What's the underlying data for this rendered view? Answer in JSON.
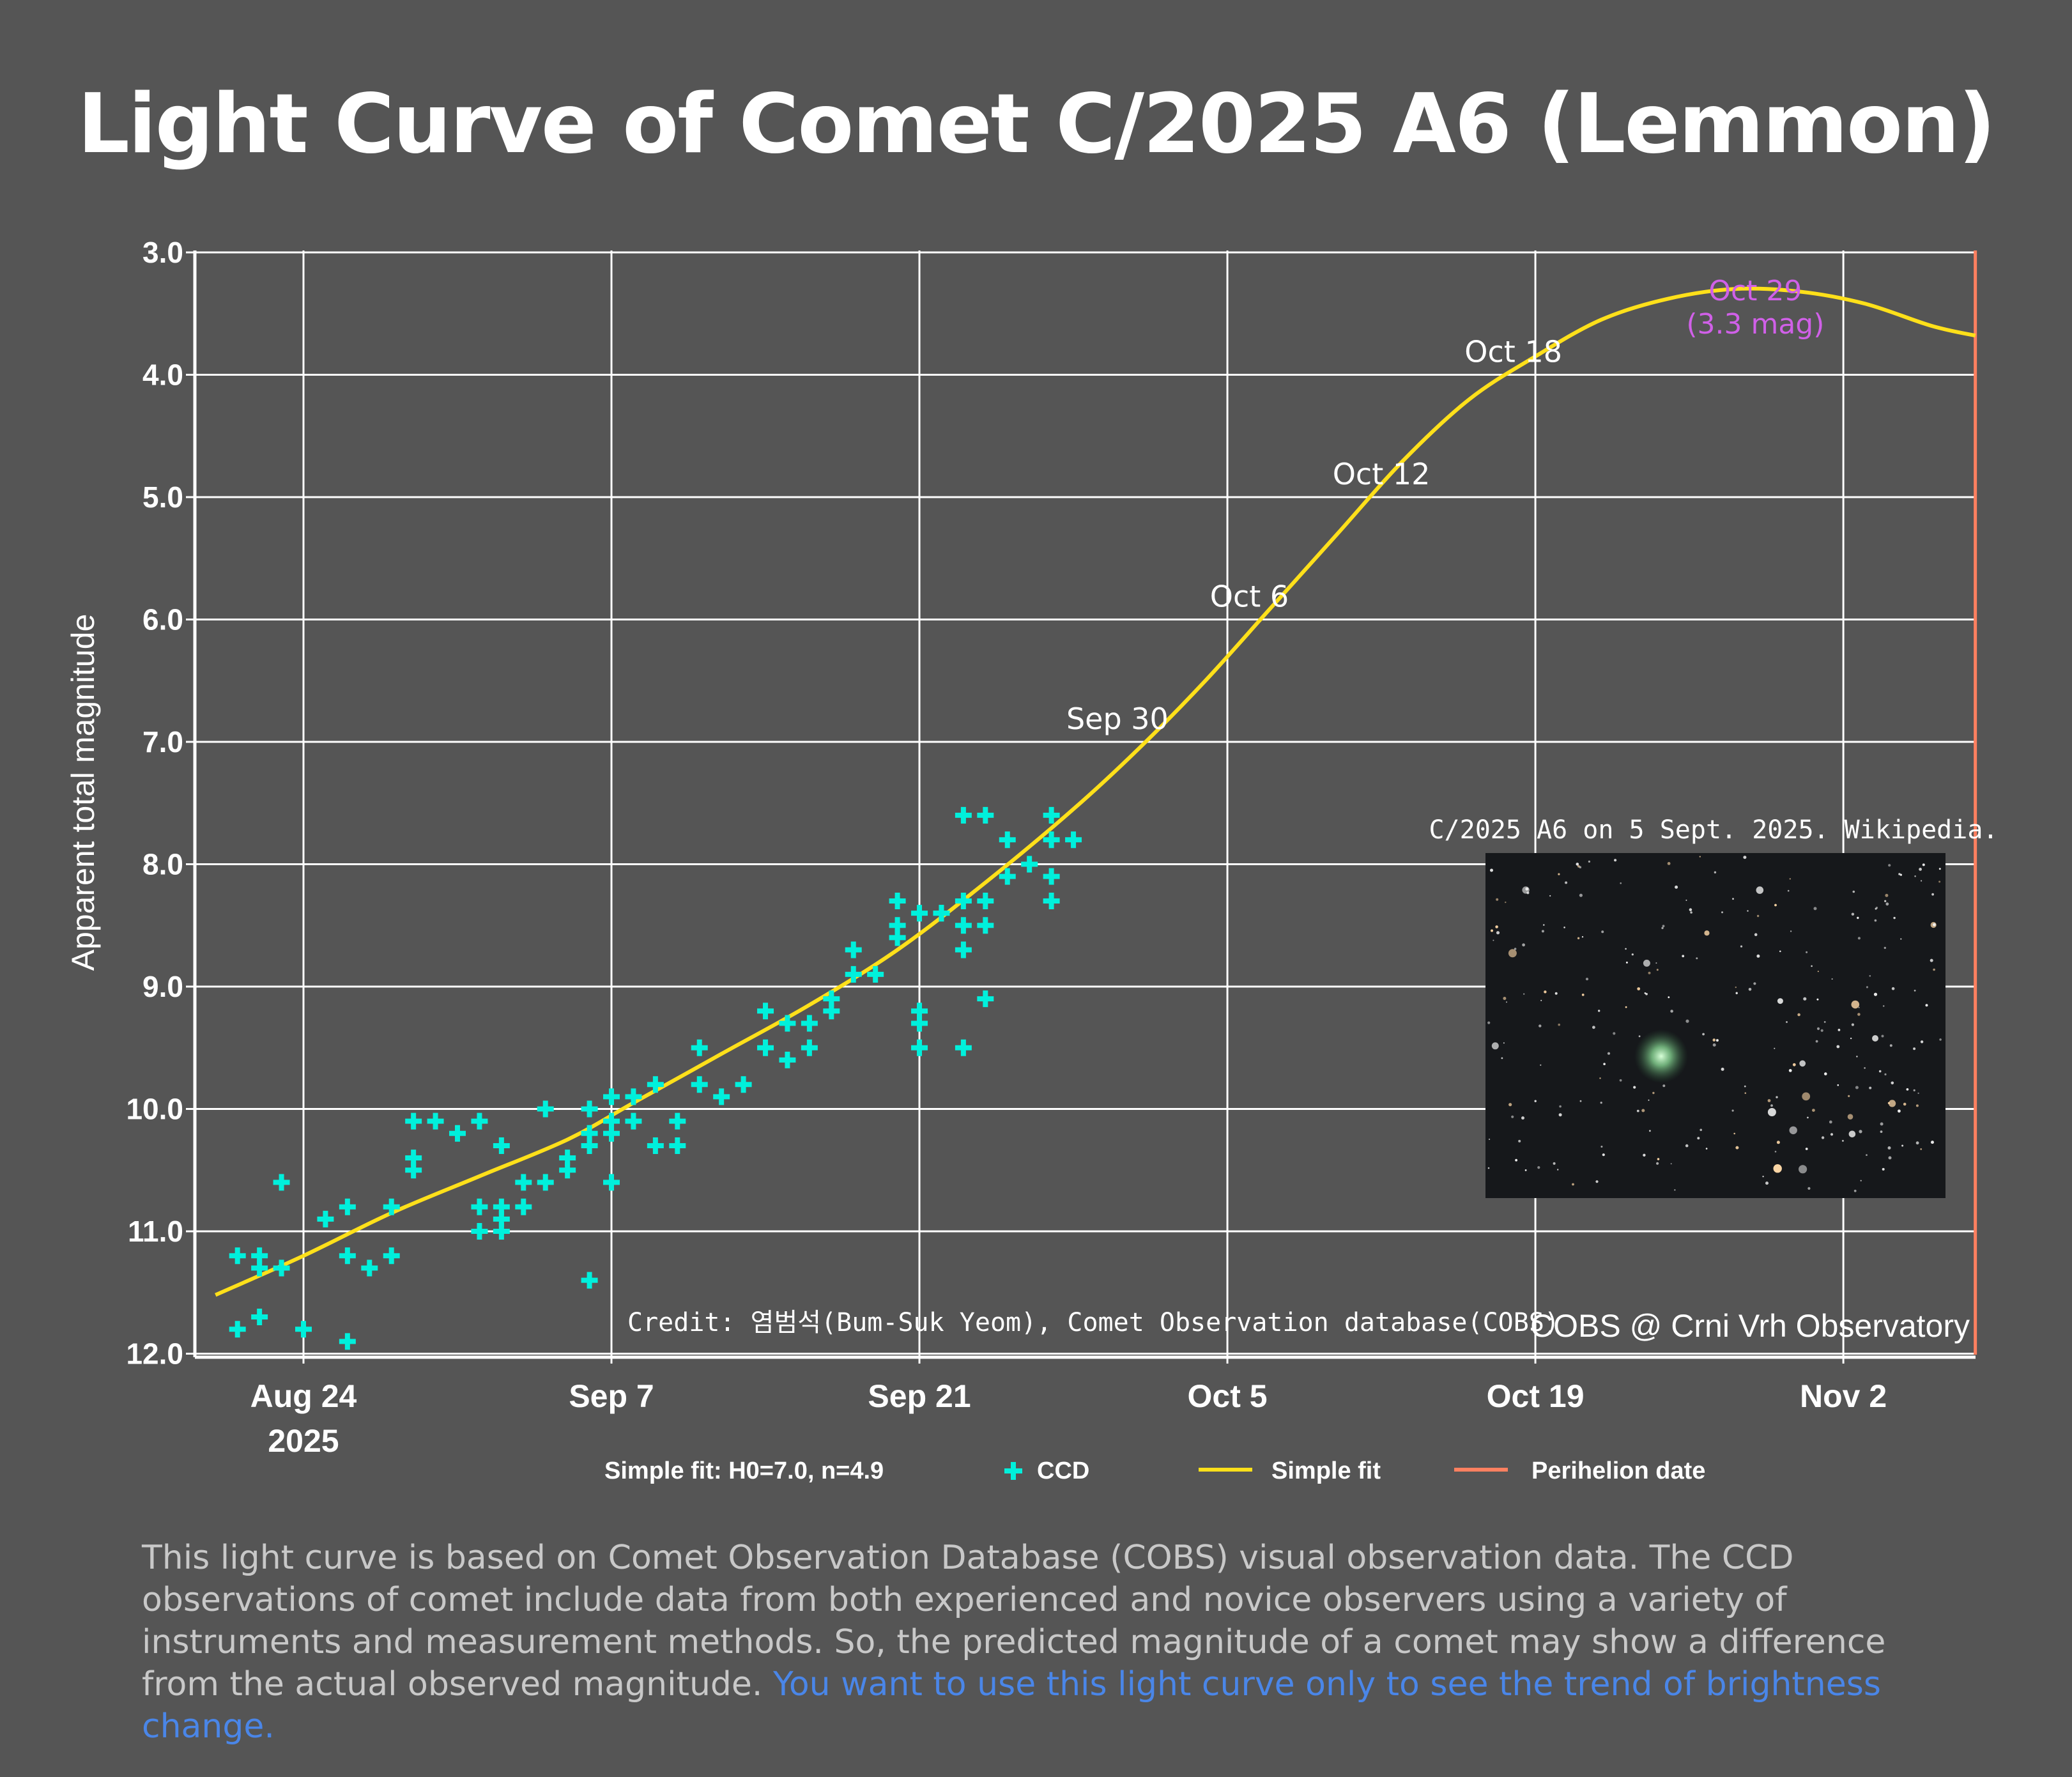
{
  "title": "Light Curve of Comet C/2025 A6 (Lemmon)",
  "chart_data": {
    "type": "scatter",
    "ylabel": "Apparent total magnitude",
    "y_reversed": true,
    "ylim": [
      12.0,
      3.0
    ],
    "y_ticks": [
      "3.0",
      "4.0",
      "5.0",
      "6.0",
      "7.0",
      "8.0",
      "9.0",
      "10.0",
      "11.0",
      "12.0"
    ],
    "x_type": "date",
    "xlim": [
      "2025-08-19",
      "2025-11-08"
    ],
    "x_ticks": [
      {
        "date": "2025-08-24",
        "label": "Aug 24",
        "sublabel": "2025"
      },
      {
        "date": "2025-09-07",
        "label": "Sep 7"
      },
      {
        "date": "2025-09-21",
        "label": "Sep 21"
      },
      {
        "date": "2025-10-05",
        "label": "Oct 5"
      },
      {
        "date": "2025-10-19",
        "label": "Oct 19"
      },
      {
        "date": "2025-11-02",
        "label": "Nov 2"
      }
    ],
    "grid": true,
    "series": [
      {
        "name": "CCD",
        "marker": "plus",
        "color": "#00f0dc",
        "points": [
          [
            "2025-08-21",
            11.8
          ],
          [
            "2025-08-21",
            11.2
          ],
          [
            "2025-08-22",
            11.2
          ],
          [
            "2025-08-22",
            11.3
          ],
          [
            "2025-08-22",
            11.7
          ],
          [
            "2025-08-23",
            10.6
          ],
          [
            "2025-08-23",
            11.3
          ],
          [
            "2025-08-24",
            11.8
          ],
          [
            "2025-08-25",
            10.9
          ],
          [
            "2025-08-26",
            10.8
          ],
          [
            "2025-08-26",
            11.2
          ],
          [
            "2025-08-26",
            11.9
          ],
          [
            "2025-08-27",
            11.3
          ],
          [
            "2025-08-28",
            10.8
          ],
          [
            "2025-08-28",
            11.2
          ],
          [
            "2025-08-29",
            10.4
          ],
          [
            "2025-08-29",
            10.5
          ],
          [
            "2025-08-29",
            10.1
          ],
          [
            "2025-08-30",
            10.1
          ],
          [
            "2025-08-31",
            10.2
          ],
          [
            "2025-09-01",
            10.8
          ],
          [
            "2025-09-01",
            11.0
          ],
          [
            "2025-09-01",
            10.1
          ],
          [
            "2025-09-02",
            10.8
          ],
          [
            "2025-09-02",
            10.9
          ],
          [
            "2025-09-02",
            10.3
          ],
          [
            "2025-09-02",
            11.0
          ],
          [
            "2025-09-03",
            10.8
          ],
          [
            "2025-09-03",
            10.6
          ],
          [
            "2025-09-04",
            10.0
          ],
          [
            "2025-09-04",
            10.6
          ],
          [
            "2025-09-05",
            10.5
          ],
          [
            "2025-09-05",
            10.4
          ],
          [
            "2025-09-06",
            10.2
          ],
          [
            "2025-09-06",
            10.0
          ],
          [
            "2025-09-06",
            11.4
          ],
          [
            "2025-09-06",
            10.3
          ],
          [
            "2025-09-07",
            10.2
          ],
          [
            "2025-09-07",
            9.9
          ],
          [
            "2025-09-07",
            10.6
          ],
          [
            "2025-09-07",
            10.1
          ],
          [
            "2025-09-08",
            9.9
          ],
          [
            "2025-09-08",
            10.1
          ],
          [
            "2025-09-09",
            10.3
          ],
          [
            "2025-09-09",
            9.8
          ],
          [
            "2025-09-10",
            10.1
          ],
          [
            "2025-09-10",
            10.3
          ],
          [
            "2025-09-11",
            9.5
          ],
          [
            "2025-09-11",
            9.8
          ],
          [
            "2025-09-12",
            9.9
          ],
          [
            "2025-09-13",
            9.8
          ],
          [
            "2025-09-14",
            9.5
          ],
          [
            "2025-09-14",
            9.2
          ],
          [
            "2025-09-15",
            9.6
          ],
          [
            "2025-09-15",
            9.3
          ],
          [
            "2025-09-16",
            9.3
          ],
          [
            "2025-09-16",
            9.5
          ],
          [
            "2025-09-17",
            9.2
          ],
          [
            "2025-09-17",
            9.1
          ],
          [
            "2025-09-18",
            8.9
          ],
          [
            "2025-09-18",
            8.7
          ],
          [
            "2025-09-19",
            8.9
          ],
          [
            "2025-09-20",
            8.3
          ],
          [
            "2025-09-20",
            8.5
          ],
          [
            "2025-09-20",
            8.6
          ],
          [
            "2025-09-21",
            8.4
          ],
          [
            "2025-09-21",
            9.2
          ],
          [
            "2025-09-21",
            9.3
          ],
          [
            "2025-09-21",
            9.5
          ],
          [
            "2025-09-22",
            8.4
          ],
          [
            "2025-09-22",
            8.4
          ],
          [
            "2025-09-23",
            7.6
          ],
          [
            "2025-09-23",
            8.3
          ],
          [
            "2025-09-23",
            8.5
          ],
          [
            "2025-09-23",
            8.7
          ],
          [
            "2025-09-23",
            9.5
          ],
          [
            "2025-09-24",
            8.5
          ],
          [
            "2025-09-24",
            9.1
          ],
          [
            "2025-09-24",
            8.3
          ],
          [
            "2025-09-24",
            7.6
          ],
          [
            "2025-09-25",
            8.1
          ],
          [
            "2025-09-25",
            7.8
          ],
          [
            "2025-09-26",
            8.0
          ],
          [
            "2025-09-27",
            7.6
          ],
          [
            "2025-09-27",
            7.8
          ],
          [
            "2025-09-27",
            8.1
          ],
          [
            "2025-09-27",
            8.3
          ],
          [
            "2025-09-28",
            7.8
          ]
        ]
      },
      {
        "name": "Simple fit",
        "color": "#ffe01a",
        "points": [
          [
            "2025-08-20",
            11.52
          ],
          [
            "2025-08-24",
            11.2
          ],
          [
            "2025-08-28",
            10.85
          ],
          [
            "2025-09-01",
            10.55
          ],
          [
            "2025-09-05",
            10.25
          ],
          [
            "2025-09-08",
            9.95
          ],
          [
            "2025-09-12",
            9.55
          ],
          [
            "2025-09-16",
            9.15
          ],
          [
            "2025-09-20",
            8.7
          ],
          [
            "2025-09-24",
            8.15
          ],
          [
            "2025-09-28",
            7.55
          ],
          [
            "2025-10-01",
            7.05
          ],
          [
            "2025-10-04",
            6.5
          ],
          [
            "2025-10-07",
            5.9
          ],
          [
            "2025-10-10",
            5.3
          ],
          [
            "2025-10-13",
            4.7
          ],
          [
            "2025-10-16",
            4.2
          ],
          [
            "2025-10-19",
            3.85
          ],
          [
            "2025-10-22",
            3.55
          ],
          [
            "2025-10-25",
            3.38
          ],
          [
            "2025-10-28",
            3.3
          ],
          [
            "2025-10-31",
            3.32
          ],
          [
            "2025-11-03",
            3.42
          ],
          [
            "2025-11-06",
            3.6
          ],
          [
            "2025-11-08",
            3.68
          ]
        ]
      },
      {
        "name": "Perihelion date",
        "color": "#ff8060",
        "date": "2025-11-08"
      }
    ],
    "annotations": [
      {
        "text": "Sep 30",
        "date": "2025-09-30",
        "mag": 7.0
      },
      {
        "text": "Oct 6",
        "date": "2025-10-06",
        "mag": 6.0
      },
      {
        "text": "Oct 12",
        "date": "2025-10-12",
        "mag": 5.0
      },
      {
        "text": "Oct 18",
        "date": "2025-10-18",
        "mag": 4.0
      }
    ],
    "peak_annotation": {
      "date": "2025-10-29",
      "mag": 3.6,
      "line1": "Oct 29",
      "line2": "(3.3 mag)"
    },
    "legend": {
      "placement": "bottom",
      "fit_params": "Simple fit: H0=7.0, n=4.9",
      "items": [
        "CCD",
        "Simple fit",
        "Perihelion date"
      ]
    },
    "credit": "Credit: 염범석(Bum-Suk Yeom), Comet Observation database(COBS)",
    "watermark": "COBS @ Crni Vrh Observatory",
    "photo_caption": "C/2025 A6 on 5 Sept. 2025. Wikipedia."
  },
  "footer": {
    "text": "This light curve is based on Comet Observation Database (COBS) visual observation data. The CCD observations of comet include data from both experienced and novice observers using a variety of instruments and measurement methods. So, the predicted magnitude of a comet may show a difference from the actual observed magnitude.",
    "highlight": "You want to use this light curve only to see the trend of brightness change."
  },
  "colors": {
    "background": "#555555",
    "grid": "#ffffff",
    "ccd": "#00f0dc",
    "fit": "#ffe01a",
    "perihelion": "#ff8060",
    "peak_label": "#d060e8",
    "footer_highlight": "#4a86e8"
  }
}
